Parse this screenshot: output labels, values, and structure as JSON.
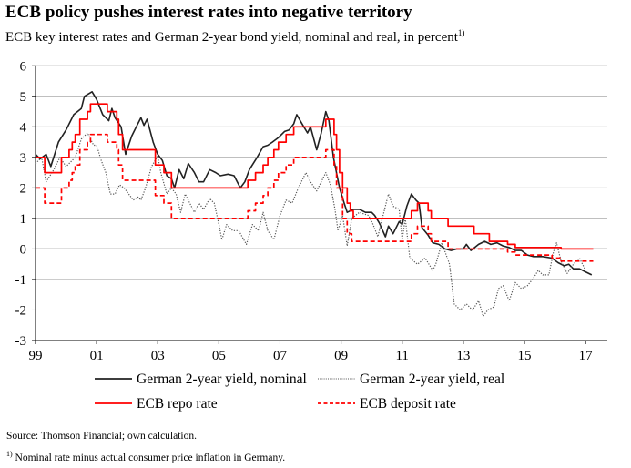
{
  "chart_data": {
    "type": "line",
    "title": "ECB policy pushes interest rates into negative territory",
    "subtitle": "ECB key interest rates and German 2-year bond yield, nominal and real, in percent",
    "subtitle_footnote_mark": "1)",
    "xlabel": "",
    "ylabel": "",
    "xlim": [
      1999,
      2017.7
    ],
    "ylim": [
      -3,
      6
    ],
    "x_ticks": [
      1999,
      2001,
      2003,
      2005,
      2007,
      2009,
      2011,
      2013,
      2015,
      2017
    ],
    "x_tick_labels": [
      "99",
      "01",
      "03",
      "05",
      "07",
      "09",
      "11",
      "13",
      "15",
      "17"
    ],
    "y_ticks": [
      6,
      5,
      4,
      3,
      2,
      1,
      0,
      -1,
      -2,
      -3
    ],
    "y_tick_labels": [
      "6",
      "5",
      "4",
      "3",
      "2",
      "1",
      "0",
      "-1",
      "-2",
      "-3"
    ],
    "grid": "horizontal",
    "legend_placement": "bottom",
    "series": [
      {
        "name": "German 2-year yield, nominal",
        "color": "#222222",
        "style": "solid",
        "step": false,
        "points": [
          [
            1999.0,
            3.1
          ],
          [
            1999.15,
            2.95
          ],
          [
            1999.35,
            3.1
          ],
          [
            1999.5,
            2.7
          ],
          [
            1999.75,
            3.5
          ],
          [
            2000.0,
            3.9
          ],
          [
            2000.25,
            4.4
          ],
          [
            2000.5,
            4.6
          ],
          [
            2000.6,
            5.0
          ],
          [
            2000.85,
            5.15
          ],
          [
            2001.0,
            4.9
          ],
          [
            2001.2,
            4.4
          ],
          [
            2001.4,
            4.2
          ],
          [
            2001.5,
            4.6
          ],
          [
            2001.6,
            4.3
          ],
          [
            2001.8,
            4.0
          ],
          [
            2001.95,
            3.1
          ],
          [
            2002.15,
            3.7
          ],
          [
            2002.3,
            4.0
          ],
          [
            2002.45,
            4.3
          ],
          [
            2002.55,
            4.05
          ],
          [
            2002.65,
            4.25
          ],
          [
            2002.85,
            3.5
          ],
          [
            2003.0,
            3.1
          ],
          [
            2003.15,
            2.9
          ],
          [
            2003.3,
            2.4
          ],
          [
            2003.45,
            2.3
          ],
          [
            2003.55,
            2.0
          ],
          [
            2003.7,
            2.6
          ],
          [
            2003.85,
            2.3
          ],
          [
            2004.0,
            2.8
          ],
          [
            2004.2,
            2.5
          ],
          [
            2004.35,
            2.2
          ],
          [
            2004.5,
            2.2
          ],
          [
            2004.7,
            2.6
          ],
          [
            2004.9,
            2.5
          ],
          [
            2005.05,
            2.4
          ],
          [
            2005.3,
            2.45
          ],
          [
            2005.5,
            2.4
          ],
          [
            2005.7,
            2.0
          ],
          [
            2005.85,
            2.2
          ],
          [
            2006.0,
            2.6
          ],
          [
            2006.25,
            3.0
          ],
          [
            2006.45,
            3.35
          ],
          [
            2006.6,
            3.4
          ],
          [
            2006.75,
            3.5
          ],
          [
            2006.95,
            3.65
          ],
          [
            2007.15,
            3.85
          ],
          [
            2007.3,
            3.9
          ],
          [
            2007.45,
            4.1
          ],
          [
            2007.55,
            4.4
          ],
          [
            2007.75,
            4.05
          ],
          [
            2007.9,
            3.8
          ],
          [
            2008.0,
            4.0
          ],
          [
            2008.2,
            3.25
          ],
          [
            2008.35,
            3.8
          ],
          [
            2008.5,
            4.5
          ],
          [
            2008.6,
            4.2
          ],
          [
            2008.75,
            3.0
          ],
          [
            2008.95,
            2.0
          ],
          [
            2009.1,
            1.5
          ],
          [
            2009.2,
            1.2
          ],
          [
            2009.4,
            1.3
          ],
          [
            2009.6,
            1.3
          ],
          [
            2009.8,
            1.2
          ],
          [
            2010.0,
            1.2
          ],
          [
            2010.1,
            1.1
          ],
          [
            2010.25,
            0.85
          ],
          [
            2010.45,
            0.4
          ],
          [
            2010.55,
            0.75
          ],
          [
            2010.7,
            0.5
          ],
          [
            2010.9,
            0.9
          ],
          [
            2011.0,
            0.8
          ],
          [
            2011.15,
            1.4
          ],
          [
            2011.3,
            1.8
          ],
          [
            2011.45,
            1.6
          ],
          [
            2011.55,
            1.5
          ],
          [
            2011.65,
            0.7
          ],
          [
            2011.85,
            0.45
          ],
          [
            2012.0,
            0.2
          ],
          [
            2012.2,
            0.15
          ],
          [
            2012.4,
            0.0
          ],
          [
            2012.6,
            -0.05
          ],
          [
            2012.8,
            0.0
          ],
          [
            2013.0,
            0.0
          ],
          [
            2013.1,
            0.15
          ],
          [
            2013.25,
            -0.05
          ],
          [
            2013.5,
            0.15
          ],
          [
            2013.7,
            0.25
          ],
          [
            2013.9,
            0.15
          ],
          [
            2014.1,
            0.2
          ],
          [
            2014.3,
            0.1
          ],
          [
            2014.5,
            0.05
          ],
          [
            2014.7,
            -0.05
          ],
          [
            2014.9,
            -0.05
          ],
          [
            2015.1,
            -0.2
          ],
          [
            2015.3,
            -0.25
          ],
          [
            2015.6,
            -0.25
          ],
          [
            2015.9,
            -0.3
          ],
          [
            2016.1,
            -0.45
          ],
          [
            2016.3,
            -0.55
          ],
          [
            2016.45,
            -0.5
          ],
          [
            2016.6,
            -0.65
          ],
          [
            2016.8,
            -0.65
          ],
          [
            2017.0,
            -0.75
          ],
          [
            2017.2,
            -0.85
          ]
        ]
      },
      {
        "name": "German 2-year yield, real",
        "color": "#555555",
        "style": "dotted",
        "step": false,
        "points": [
          [
            1999.0,
            2.8
          ],
          [
            1999.2,
            3.0
          ],
          [
            1999.35,
            2.2
          ],
          [
            1999.6,
            2.6
          ],
          [
            1999.8,
            3.0
          ],
          [
            2000.0,
            2.7
          ],
          [
            2000.3,
            3.0
          ],
          [
            2000.5,
            3.6
          ],
          [
            2000.7,
            3.8
          ],
          [
            2000.9,
            3.4
          ],
          [
            2001.0,
            3.4
          ],
          [
            2001.15,
            2.9
          ],
          [
            2001.3,
            2.5
          ],
          [
            2001.45,
            1.8
          ],
          [
            2001.6,
            1.8
          ],
          [
            2001.75,
            2.1
          ],
          [
            2001.9,
            2.0
          ],
          [
            2002.05,
            1.8
          ],
          [
            2002.2,
            1.6
          ],
          [
            2002.35,
            1.7
          ],
          [
            2002.45,
            1.6
          ],
          [
            2002.6,
            2.0
          ],
          [
            2002.8,
            2.7
          ],
          [
            2003.0,
            3.05
          ],
          [
            2003.1,
            2.5
          ],
          [
            2003.3,
            1.8
          ],
          [
            2003.45,
            2.0
          ],
          [
            2003.6,
            1.8
          ],
          [
            2003.75,
            1.2
          ],
          [
            2003.9,
            1.8
          ],
          [
            2004.0,
            1.6
          ],
          [
            2004.2,
            1.2
          ],
          [
            2004.35,
            1.5
          ],
          [
            2004.5,
            1.3
          ],
          [
            2004.7,
            1.65
          ],
          [
            2004.85,
            1.5
          ],
          [
            2005.0,
            0.8
          ],
          [
            2005.1,
            0.3
          ],
          [
            2005.25,
            0.8
          ],
          [
            2005.45,
            0.6
          ],
          [
            2005.65,
            0.6
          ],
          [
            2005.9,
            0.15
          ],
          [
            2006.1,
            0.8
          ],
          [
            2006.3,
            0.6
          ],
          [
            2006.45,
            1.2
          ],
          [
            2006.6,
            0.6
          ],
          [
            2006.8,
            0.3
          ],
          [
            2007.0,
            1.1
          ],
          [
            2007.2,
            1.6
          ],
          [
            2007.4,
            1.5
          ],
          [
            2007.6,
            2.0
          ],
          [
            2007.85,
            2.5
          ],
          [
            2008.0,
            2.2
          ],
          [
            2008.2,
            1.9
          ],
          [
            2008.5,
            2.5
          ],
          [
            2008.65,
            2.1
          ],
          [
            2008.8,
            1.3
          ],
          [
            2008.9,
            0.6
          ],
          [
            2009.05,
            1.1
          ],
          [
            2009.2,
            0.1
          ],
          [
            2009.35,
            1.0
          ],
          [
            2009.6,
            1.2
          ],
          [
            2009.9,
            1.1
          ],
          [
            2010.05,
            0.8
          ],
          [
            2010.2,
            0.4
          ],
          [
            2010.35,
            1.0
          ],
          [
            2010.55,
            1.8
          ],
          [
            2010.7,
            1.4
          ],
          [
            2010.9,
            1.3
          ],
          [
            2011.0,
            0.3
          ],
          [
            2011.1,
            1.0
          ],
          [
            2011.25,
            -0.3
          ],
          [
            2011.5,
            -0.5
          ],
          [
            2011.75,
            -0.3
          ],
          [
            2012.0,
            -0.7
          ],
          [
            2012.1,
            -0.5
          ],
          [
            2012.3,
            0.2
          ],
          [
            2012.55,
            -0.5
          ],
          [
            2012.7,
            -1.8
          ],
          [
            2012.9,
            -2.0
          ],
          [
            2013.1,
            -1.8
          ],
          [
            2013.3,
            -2.0
          ],
          [
            2013.5,
            -1.7
          ],
          [
            2013.65,
            -2.2
          ],
          [
            2013.8,
            -2.0
          ],
          [
            2014.0,
            -1.9
          ],
          [
            2014.15,
            -1.3
          ],
          [
            2014.3,
            -1.2
          ],
          [
            2014.5,
            -1.7
          ],
          [
            2014.7,
            -1.1
          ],
          [
            2014.9,
            -1.3
          ],
          [
            2015.1,
            -1.2
          ],
          [
            2015.3,
            -0.95
          ],
          [
            2015.45,
            -0.7
          ],
          [
            2015.6,
            -0.85
          ],
          [
            2015.8,
            -0.85
          ],
          [
            2015.95,
            -0.1
          ],
          [
            2016.05,
            0.2
          ],
          [
            2016.2,
            -0.4
          ],
          [
            2016.4,
            -0.8
          ],
          [
            2016.6,
            -0.5
          ],
          [
            2016.8,
            -0.3
          ],
          [
            2017.0,
            -0.7
          ]
        ]
      },
      {
        "name": "ECB repo rate",
        "color": "#ff0000",
        "style": "solid",
        "step": true,
        "points": [
          [
            1999.0,
            3.0
          ],
          [
            1999.3,
            2.5
          ],
          [
            1999.85,
            3.0
          ],
          [
            2000.1,
            3.25
          ],
          [
            2000.2,
            3.5
          ],
          [
            2000.3,
            3.75
          ],
          [
            2000.45,
            4.25
          ],
          [
            2000.7,
            4.5
          ],
          [
            2000.8,
            4.75
          ],
          [
            2001.35,
            4.5
          ],
          [
            2001.66,
            4.25
          ],
          [
            2001.72,
            3.75
          ],
          [
            2001.85,
            3.25
          ],
          [
            2002.92,
            2.75
          ],
          [
            2003.2,
            2.5
          ],
          [
            2003.45,
            2.0
          ],
          [
            2005.95,
            2.25
          ],
          [
            2006.2,
            2.5
          ],
          [
            2006.45,
            2.75
          ],
          [
            2006.6,
            3.0
          ],
          [
            2006.8,
            3.25
          ],
          [
            2006.95,
            3.5
          ],
          [
            2007.2,
            3.75
          ],
          [
            2007.45,
            4.0
          ],
          [
            2008.5,
            4.25
          ],
          [
            2008.77,
            3.75
          ],
          [
            2008.85,
            3.25
          ],
          [
            2008.95,
            2.5
          ],
          [
            2009.05,
            2.0
          ],
          [
            2009.2,
            1.5
          ],
          [
            2009.3,
            1.25
          ],
          [
            2009.4,
            1.0
          ],
          [
            2011.3,
            1.25
          ],
          [
            2011.5,
            1.5
          ],
          [
            2011.85,
            1.25
          ],
          [
            2011.95,
            1.0
          ],
          [
            2012.5,
            0.75
          ],
          [
            2013.35,
            0.5
          ],
          [
            2013.85,
            0.25
          ],
          [
            2014.45,
            0.15
          ],
          [
            2014.7,
            0.05
          ],
          [
            2016.2,
            0.0
          ],
          [
            2017.25,
            0.0
          ]
        ]
      },
      {
        "name": "ECB deposit rate",
        "color": "#ff0000",
        "style": "dashed",
        "step": true,
        "points": [
          [
            1999.0,
            2.0
          ],
          [
            1999.3,
            1.5
          ],
          [
            1999.85,
            2.0
          ],
          [
            2000.1,
            2.25
          ],
          [
            2000.2,
            2.5
          ],
          [
            2000.3,
            2.75
          ],
          [
            2000.45,
            3.25
          ],
          [
            2000.7,
            3.5
          ],
          [
            2000.8,
            3.75
          ],
          [
            2001.35,
            3.5
          ],
          [
            2001.66,
            3.25
          ],
          [
            2001.72,
            2.75
          ],
          [
            2001.85,
            2.25
          ],
          [
            2002.92,
            1.75
          ],
          [
            2003.2,
            1.5
          ],
          [
            2003.45,
            1.0
          ],
          [
            2005.95,
            1.25
          ],
          [
            2006.2,
            1.5
          ],
          [
            2006.45,
            1.75
          ],
          [
            2006.6,
            2.0
          ],
          [
            2006.8,
            2.25
          ],
          [
            2006.95,
            2.5
          ],
          [
            2007.2,
            2.75
          ],
          [
            2007.45,
            3.0
          ],
          [
            2008.5,
            3.25
          ],
          [
            2008.77,
            2.75
          ],
          [
            2008.85,
            2.0
          ],
          [
            2009.05,
            1.0
          ],
          [
            2009.2,
            0.5
          ],
          [
            2009.35,
            0.25
          ],
          [
            2011.3,
            0.5
          ],
          [
            2011.5,
            0.75
          ],
          [
            2011.85,
            0.5
          ],
          [
            2011.95,
            0.25
          ],
          [
            2012.5,
            0.0
          ],
          [
            2014.45,
            -0.1
          ],
          [
            2014.7,
            -0.2
          ],
          [
            2015.9,
            -0.3
          ],
          [
            2016.2,
            -0.4
          ],
          [
            2017.25,
            -0.4
          ]
        ]
      }
    ]
  },
  "source": "Source: Thomson Financial; own calculation.",
  "footnote_mark": "1)",
  "footnote": "Nominal rate minus actual consumer price inflation in Germany."
}
